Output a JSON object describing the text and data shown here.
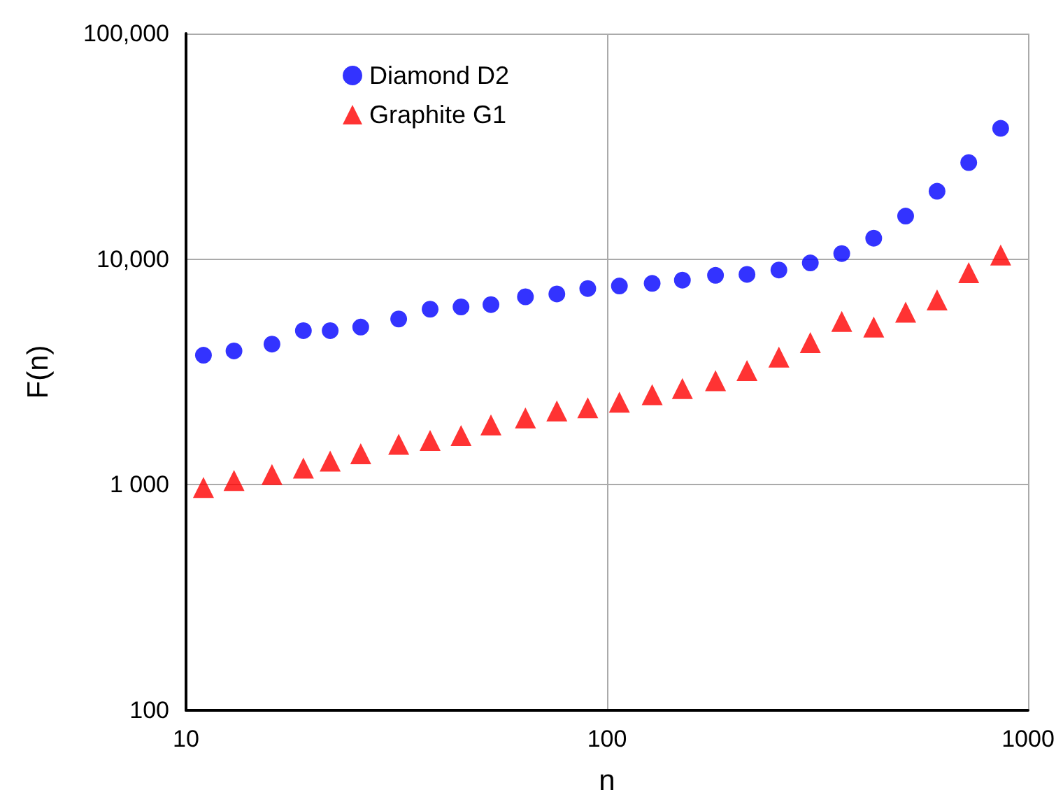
{
  "chart_data": {
    "type": "scatter",
    "xlabel": "n",
    "ylabel": "F(n)",
    "log": "xy",
    "grid": true,
    "legend": "top left",
    "xlim": [
      10,
      1000
    ],
    "xticks": [
      10,
      100,
      1000
    ],
    "ylim": [
      100,
      100000
    ],
    "yticks": [
      {
        "value": 100,
        "label": "100"
      },
      {
        "value": 1000,
        "label": "1 000"
      },
      {
        "value": 10000,
        "label": "10,000"
      },
      {
        "value": 100000,
        "label": "100,000"
      }
    ],
    "x": [
      11,
      13,
      16,
      19,
      22,
      26,
      32,
      38,
      45,
      53,
      64,
      76,
      90,
      107,
      128,
      151,
      181,
      215,
      256,
      304,
      361,
      430,
      512,
      608,
      723,
      861
    ],
    "series": [
      {
        "name": "Diamond D2",
        "color": "#0000ff",
        "marker": "circle",
        "values": [
          3750,
          3920,
          4200,
          4820,
          4820,
          5000,
          5430,
          6000,
          6140,
          6290,
          6810,
          7010,
          7410,
          7600,
          7810,
          8070,
          8480,
          8560,
          8950,
          9620,
          10590,
          12390,
          15520,
          19990,
          26800,
          38000
        ]
      },
      {
        "name": "Graphite G1",
        "color": "#ff0000",
        "marker": "triangle",
        "values": [
          973,
          1045,
          1110,
          1186,
          1274,
          1373,
          1511,
          1570,
          1652,
          1843,
          1977,
          2123,
          2195,
          2323,
          2506,
          2667,
          2893,
          3206,
          3680,
          4266,
          5297,
          5000,
          5821,
          6592,
          8710,
          10440
        ]
      }
    ]
  }
}
